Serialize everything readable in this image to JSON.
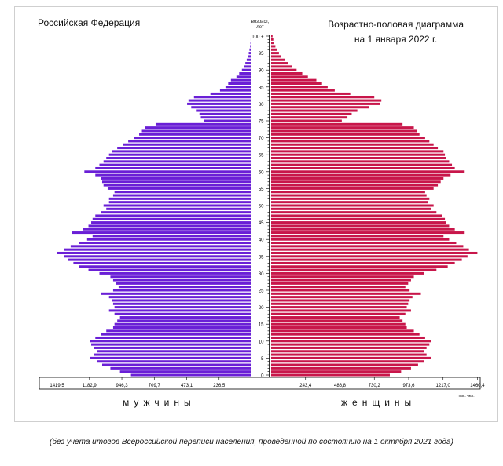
{
  "header": {
    "region": "Российская Федерация",
    "title_line1": "Возрастно-половая диаграмма",
    "title_line2": "на 1 января 2022 г."
  },
  "labels": {
    "male": "мужчины",
    "female": "женщины",
    "units": "тыс. чел.",
    "age_head_line1": "возраст,",
    "age_head_line2": "лет"
  },
  "footnote": "(без учёта итогов Всероссийской переписи населения, проведённой по состоянию на 1 октября 2021 года)",
  "colors": {
    "male": "#6a1fd6",
    "female": "#c8164a",
    "axis": "#000000"
  },
  "chart_data": {
    "type": "bar",
    "orientation": "horizontal-pyramid",
    "age_ticks": [
      "0",
      "5",
      "10",
      "15",
      "20",
      "25",
      "30",
      "35",
      "40",
      "45",
      "50",
      "55",
      "60",
      "65",
      "70",
      "75",
      "80",
      "85",
      "90",
      "95",
      "100 +"
    ],
    "male_ticks": [
      "1419,5",
      "1182,9",
      "946,3",
      "709,7",
      "473,1",
      "236,5"
    ],
    "female_ticks": [
      "243,4",
      "486,8",
      "730,2",
      "973,6",
      "1217,0",
      "1460,4"
    ],
    "xlim": [
      0,
      1480
    ],
    "series": [
      {
        "name": "мужчины",
        "values": [
          880,
          960,
          1030,
          1090,
          1130,
          1180,
          1150,
          1130,
          1150,
          1170,
          1180,
          1140,
          1100,
          1060,
          1010,
          1000,
          980,
          960,
          1000,
          1040,
          1000,
          1010,
          1020,
          1040,
          1100,
          1010,
          970,
          990,
          1010,
          1030,
          1110,
          1190,
          1260,
          1300,
          1340,
          1370,
          1420,
          1370,
          1320,
          1260,
          1200,
          1160,
          1310,
          1230,
          1190,
          1170,
          1160,
          1140,
          1100,
          1060,
          1080,
          1040,
          1040,
          1010,
          1000,
          1050,
          1080,
          1090,
          1100,
          1140,
          1220,
          1140,
          1110,
          1080,
          1060,
          1040,
          1020,
          980,
          940,
          900,
          860,
          820,
          800,
          780,
          700,
          350,
          370,
          380,
          400,
          440,
          470,
          460,
          420,
          300,
          230,
          190,
          170,
          150,
          110,
          90,
          70,
          55,
          45,
          35,
          25,
          20,
          15,
          10,
          8,
          6,
          5
        ]
      },
      {
        "name": "женщины",
        "values": [
          840,
          920,
          990,
          1040,
          1080,
          1130,
          1100,
          1080,
          1100,
          1120,
          1130,
          1090,
          1050,
          1010,
          960,
          950,
          930,
          910,
          950,
          990,
          960,
          970,
          980,
          1000,
          1060,
          980,
          950,
          970,
          990,
          1010,
          1080,
          1170,
          1250,
          1300,
          1350,
          1390,
          1460,
          1400,
          1360,
          1310,
          1260,
          1220,
          1370,
          1300,
          1260,
          1240,
          1230,
          1210,
          1170,
          1130,
          1150,
          1110,
          1120,
          1100,
          1090,
          1150,
          1180,
          1200,
          1220,
          1270,
          1370,
          1300,
          1280,
          1260,
          1240,
          1230,
          1220,
          1180,
          1150,
          1120,
          1090,
          1050,
          1030,
          1010,
          930,
          500,
          540,
          570,
          610,
          690,
          770,
          780,
          730,
          560,
          450,
          400,
          360,
          320,
          260,
          220,
          180,
          150,
          120,
          95,
          70,
          55,
          40,
          30,
          20,
          15,
          10
        ]
      }
    ],
    "ages": "0-100",
    "grid": false,
    "legend": "none"
  }
}
